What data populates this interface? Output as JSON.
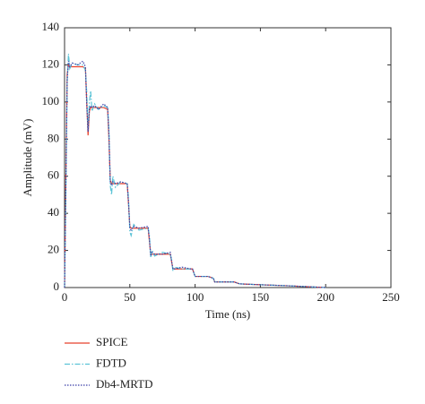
{
  "chart_data": {
    "type": "line",
    "xlabel": "Time (ns)",
    "ylabel": "Amplitude (mV)",
    "x": [
      0,
      1,
      2,
      3,
      4,
      6,
      10,
      14,
      16,
      17,
      18,
      19,
      20,
      21,
      23,
      26,
      30,
      33,
      34,
      35,
      36,
      37,
      39,
      43,
      48,
      49,
      50,
      51,
      53,
      57,
      64,
      65,
      66,
      67,
      69,
      75,
      81,
      82,
      83,
      84,
      90,
      97,
      98,
      99,
      100,
      103,
      110,
      114,
      115,
      118,
      130,
      134,
      150,
      170,
      200
    ],
    "series": [
      {
        "name": "SPICE",
        "color": "#e8412c",
        "dash": "solid",
        "values": [
          0,
          60,
          115,
          120,
          119,
          119,
          119,
          119,
          118,
          100,
          82,
          95,
          97,
          97,
          97,
          97,
          97,
          96,
          80,
          58,
          56,
          56,
          56,
          56,
          56,
          45,
          33,
          32,
          32,
          32,
          32,
          25,
          18,
          18,
          18,
          18,
          18,
          14,
          10,
          10,
          10,
          10,
          10,
          8,
          6,
          6,
          6,
          5,
          3,
          3,
          3,
          2,
          1.5,
          1,
          0
        ]
      },
      {
        "name": "FDTD",
        "color": "#5bc3d6",
        "dash": "dashdot",
        "values": [
          0,
          50,
          110,
          126,
          118,
          121,
          120,
          120,
          117,
          105,
          85,
          100,
          106,
          95,
          99,
          96,
          98,
          97,
          85,
          55,
          50,
          60,
          54,
          57,
          56,
          48,
          30,
          28,
          34,
          31,
          32,
          28,
          16,
          20,
          17,
          19,
          18,
          15,
          9,
          11,
          10,
          10,
          10,
          8,
          6,
          6,
          6,
          5,
          3,
          3,
          3,
          2,
          1.5,
          1,
          0
        ]
      },
      {
        "name": "Db4-MRTD",
        "color": "#3b3fa8",
        "dash": "dotted",
        "values": [
          0,
          55,
          112,
          122,
          119,
          121,
          120,
          122,
          119,
          98,
          84,
          96,
          98,
          97,
          98,
          96,
          99,
          97,
          83,
          57,
          55,
          57,
          56,
          57,
          56,
          46,
          32,
          31,
          33,
          32,
          33,
          26,
          17,
          19,
          18,
          18,
          19,
          14,
          10,
          10,
          11,
          10,
          10,
          8,
          6,
          6,
          6,
          5,
          3,
          3,
          3,
          2,
          1.5,
          1,
          0
        ]
      }
    ],
    "xlim": [
      0,
      250
    ],
    "xticks": [
      0,
      50,
      100,
      150,
      200,
      250
    ],
    "ylim": [
      0,
      140
    ],
    "yticks": [
      0,
      20,
      40,
      60,
      80,
      100,
      120,
      140
    ],
    "legend": "below"
  }
}
